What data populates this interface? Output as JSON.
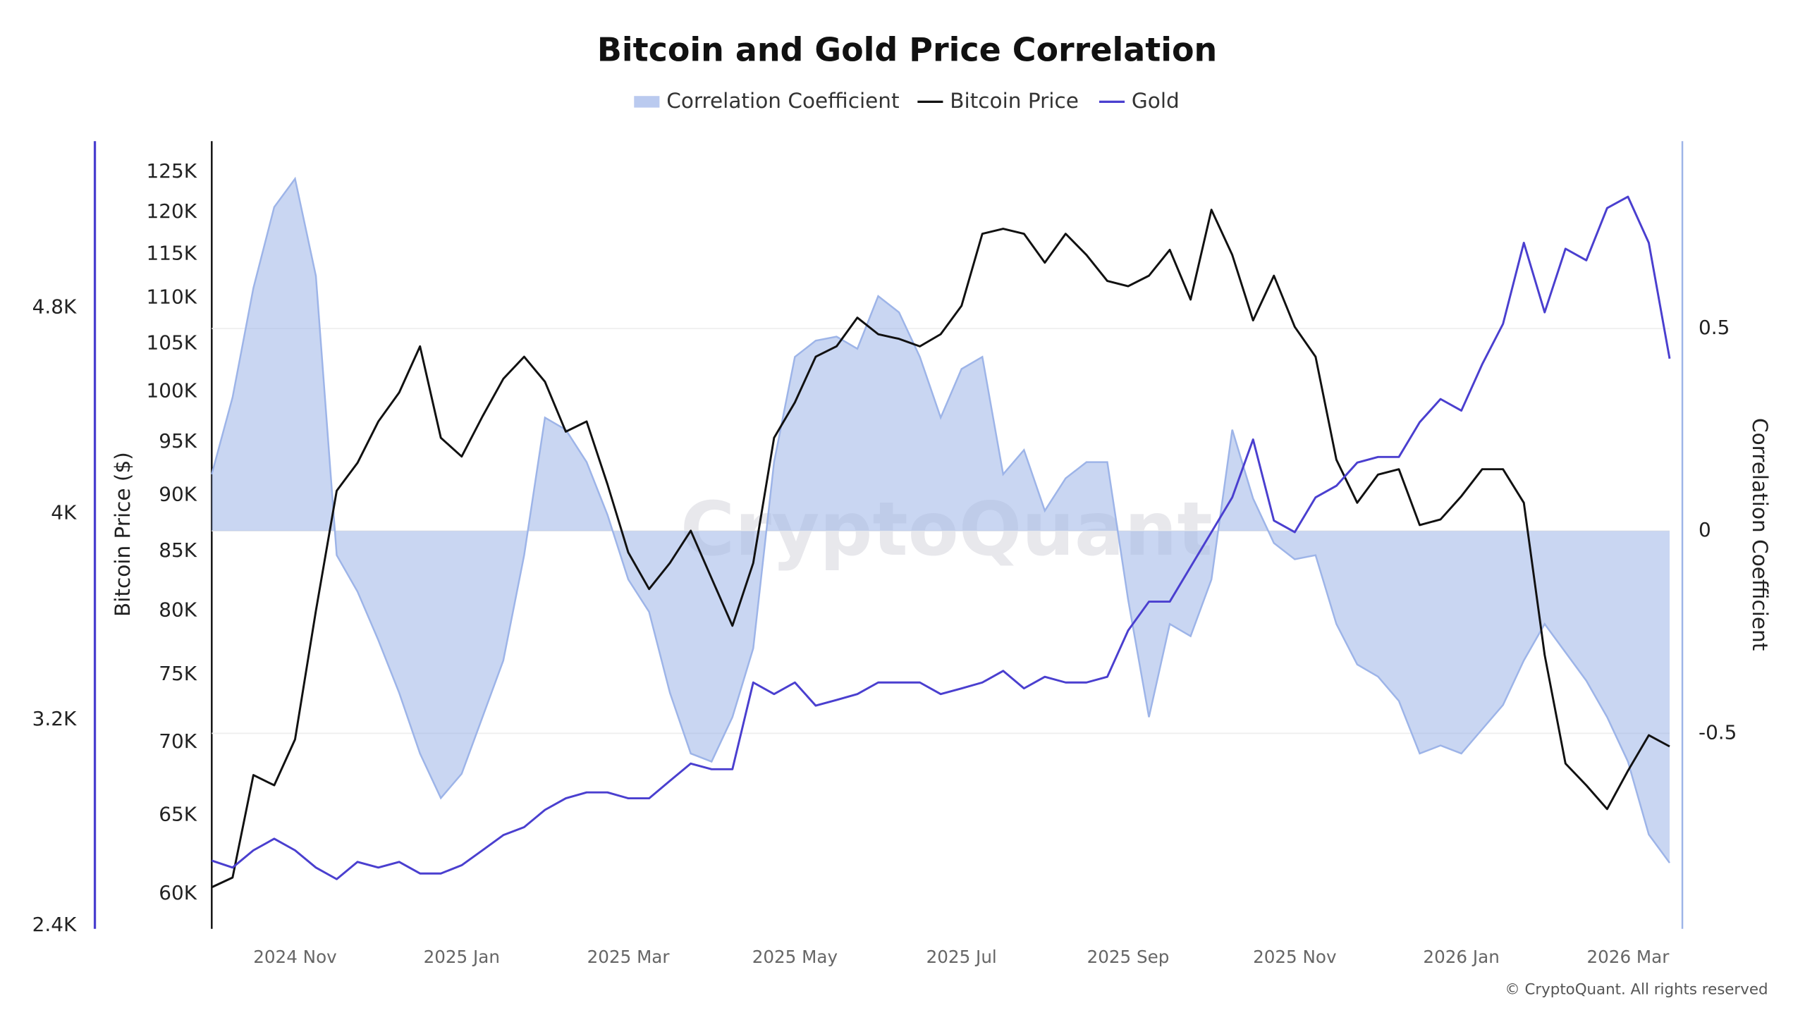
{
  "chart_data": {
    "type": "line",
    "title": "Bitcoin and Gold Price Correlation",
    "watermark": "CryptoQuant",
    "footer": "© CryptoQuant. All rights reserved",
    "y_label": "Bitcoin Price ($)",
    "y2_label": "Correlation Coefficient",
    "y_scale": "log",
    "grid": "y2",
    "legend": "top",
    "categories": [
      null,
      null,
      null,
      null,
      "2024 Nov",
      null,
      null,
      null,
      null,
      null,
      null,
      null,
      "2025 Jan",
      null,
      null,
      null,
      null,
      null,
      null,
      null,
      "2025 Mar",
      null,
      null,
      null,
      null,
      null,
      null,
      null,
      "2025 May",
      null,
      null,
      null,
      null,
      null,
      null,
      null,
      "2025 Jul",
      null,
      null,
      null,
      null,
      null,
      null,
      null,
      "2025 Sep",
      null,
      null,
      null,
      null,
      null,
      null,
      null,
      "2025 Nov",
      null,
      null,
      null,
      null,
      null,
      null,
      null,
      "2026 Jan",
      null,
      null,
      null,
      null,
      null,
      null,
      null,
      "2026 Mar",
      null,
      null
    ],
    "ylim": [
      57900,
      129000
    ],
    "yticks": [
      {
        "value": 60000,
        "label": "60K"
      },
      {
        "value": 65000,
        "label": "65K"
      },
      {
        "value": 70000,
        "label": "70K"
      },
      {
        "value": 75000,
        "label": "75K"
      },
      {
        "value": 80000,
        "label": "80K"
      },
      {
        "value": 85000,
        "label": "85K"
      },
      {
        "value": 90000,
        "label": "90K"
      },
      {
        "value": 95000,
        "label": "95K"
      },
      {
        "value": 100000,
        "label": "100K"
      },
      {
        "value": 105000,
        "label": "105K"
      },
      {
        "value": 110000,
        "label": "110K"
      },
      {
        "value": 115000,
        "label": "115K"
      },
      {
        "value": 120000,
        "label": "120K"
      },
      {
        "value": 125000,
        "label": "125K"
      }
    ],
    "y2lim": [
      -0.983,
      0.963
    ],
    "y2ticks": [
      -0.5,
      0,
      0.5
    ],
    "y3lim": [
      2387,
      5447
    ],
    "y3ticks": [
      {
        "value": 2400,
        "label": "2.4K"
      },
      {
        "value": 3200,
        "label": "3.2K"
      },
      {
        "value": 4000,
        "label": "4K"
      },
      {
        "value": 4800,
        "label": "4.8K"
      }
    ],
    "y3_color": "#4a3fcf",
    "series": [
      {
        "name": "Correlation Coefficient",
        "type": "area",
        "axis": "y2",
        "color": "#9db4e8",
        "values": [
          0.14,
          0.33,
          0.6,
          0.8,
          0.87,
          0.63,
          -0.06,
          -0.15,
          -0.27,
          -0.4,
          -0.55,
          -0.66,
          -0.6,
          -0.46,
          -0.32,
          -0.06,
          0.28,
          0.25,
          0.17,
          0.04,
          -0.12,
          -0.2,
          -0.4,
          -0.55,
          -0.57,
          -0.46,
          -0.29,
          0.17,
          0.43,
          0.47,
          0.48,
          0.45,
          0.58,
          0.54,
          0.43,
          0.28,
          0.4,
          0.43,
          0.14,
          0.2,
          0.05,
          0.13,
          0.17,
          0.17,
          -0.17,
          -0.46,
          -0.23,
          -0.26,
          -0.12,
          0.25,
          0.08,
          -0.03,
          -0.07,
          -0.06,
          -0.23,
          -0.33,
          -0.36,
          -0.42,
          -0.55,
          -0.53,
          -0.55,
          -0.49,
          -0.43,
          -0.32,
          -0.23,
          -0.3,
          -0.37,
          -0.46,
          -0.57,
          -0.75,
          -0.82
        ]
      },
      {
        "name": "Bitcoin Price",
        "type": "line",
        "axis": "y",
        "color": "#111111",
        "values": [
          60400,
          61000,
          67700,
          67000,
          70200,
          80000,
          90400,
          93000,
          97000,
          99900,
          104700,
          95400,
          93600,
          97500,
          101300,
          103600,
          101000,
          96000,
          97000,
          91000,
          84900,
          81800,
          84000,
          86800,
          82700,
          78800,
          84000,
          95400,
          98900,
          103600,
          104700,
          107800,
          106000,
          105500,
          104700,
          106000,
          109100,
          117400,
          118000,
          117400,
          114000,
          117400,
          114900,
          111900,
          111300,
          112500,
          115500,
          109800,
          120300,
          114900,
          107500,
          112500,
          106800,
          103600,
          93300,
          89300,
          91900,
          92400,
          87300,
          87800,
          89900,
          92400,
          92400,
          89300,
          76500,
          68500,
          67000,
          65400,
          68000,
          70500,
          69700
        ]
      },
      {
        "name": "Gold",
        "type": "line",
        "axis": "y3",
        "color": "#4a3fcf",
        "values": [
          2652,
          2625,
          2692,
          2737,
          2692,
          2625,
          2580,
          2647,
          2625,
          2647,
          2602,
          2602,
          2634,
          2692,
          2751,
          2782,
          2849,
          2894,
          2917,
          2917,
          2894,
          2894,
          2962,
          3029,
          3007,
          3007,
          3344,
          3299,
          3344,
          3254,
          3276,
          3299,
          3344,
          3344,
          3344,
          3299,
          3321,
          3344,
          3389,
          3321,
          3366,
          3344,
          3344,
          3366,
          3546,
          3658,
          3658,
          3793,
          3928,
          4063,
          4288,
          3973,
          3928,
          4063,
          4108,
          4198,
          4220,
          4220,
          4355,
          4445,
          4400,
          4580,
          4737,
          5052,
          4782,
          5029,
          4984,
          5187,
          5231,
          5052,
          4602
        ]
      }
    ]
  }
}
